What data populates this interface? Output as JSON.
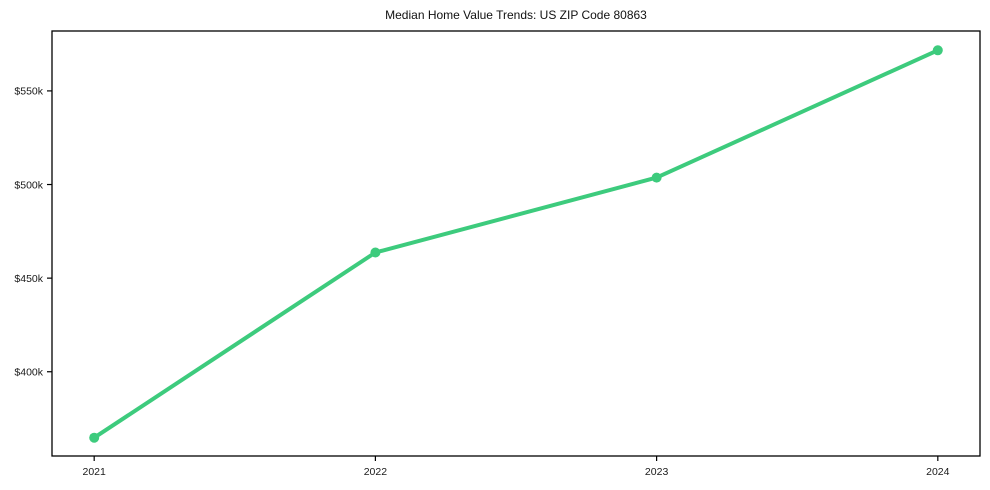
{
  "chart_data": {
    "type": "line",
    "title": "Median Home Value Trends: US ZIP Code 80863",
    "x": [
      2021,
      2022,
      2023,
      2024
    ],
    "x_tick_labels": [
      "2021",
      "2022",
      "2023",
      "2024"
    ],
    "series": [
      {
        "name": "Median Home Value",
        "values": [
          364800,
          463700,
          503700,
          571700
        ]
      }
    ],
    "y_ticks": [
      {
        "value": 400000,
        "label": "$400k"
      },
      {
        "value": 450000,
        "label": "$450k"
      },
      {
        "value": 500000,
        "label": "$500k"
      },
      {
        "value": 550000,
        "label": "$550k"
      }
    ],
    "xlim": [
      2020.85,
      2024.15
    ],
    "ylim": [
      355000,
      582000
    ],
    "grid": false,
    "legend": false
  },
  "colors": {
    "line": "#3dcb7d",
    "marker": "#3dcb7d",
    "axis": "#000000",
    "background": "#ffffff",
    "text": "#1a1a1a"
  }
}
